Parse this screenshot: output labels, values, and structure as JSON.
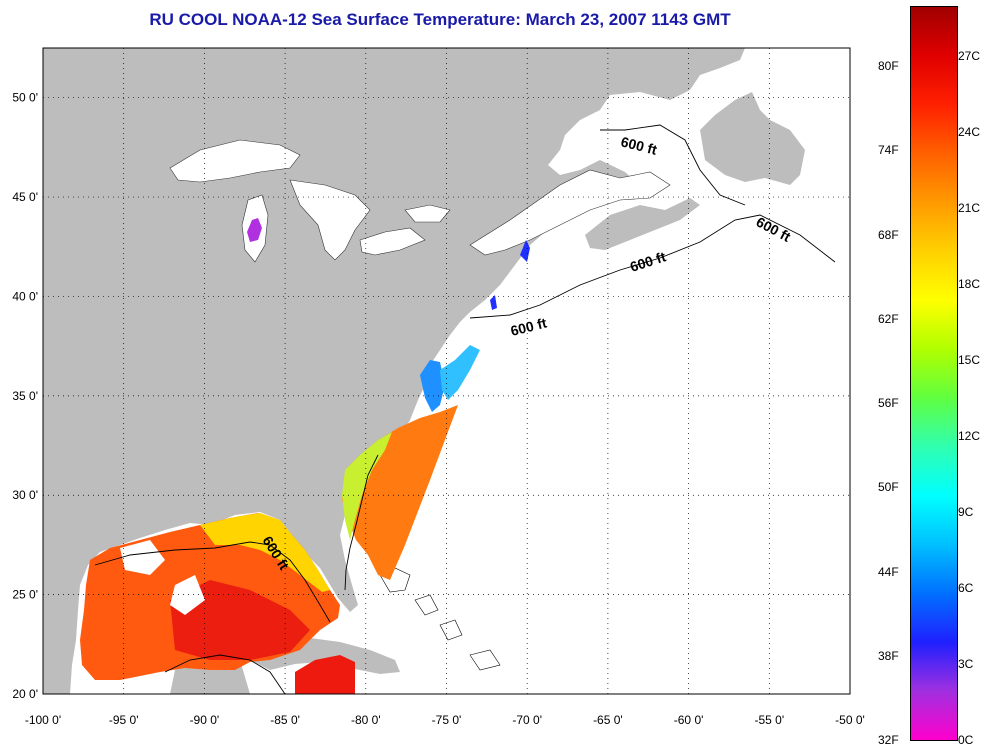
{
  "title": "RU COOL  NOAA-12  Sea Surface Temperature:  March 23, 2007 1143 GMT",
  "map": {
    "lon_labels": [
      "-100 0'",
      "-95 0'",
      "-90 0'",
      "-85 0'",
      "-80 0'",
      "-75 0'",
      "-70 0'",
      "-65 0'",
      "-60 0'",
      "-55 0'",
      "-50 0'"
    ],
    "lat_labels": [
      "50 0'",
      "45 0'",
      "40 0'",
      "35 0'",
      "30 0'",
      "25 0'",
      "20 0'"
    ],
    "contour_labels": [
      "600 ft",
      "600 ft",
      "600 ft",
      "600 ft",
      "600 ft"
    ],
    "land_color": "#bdbdbd",
    "no_data_color": "#ffffff",
    "lon_range": [
      -100,
      -50
    ],
    "lat_range": [
      20,
      52.5
    ]
  },
  "colorbar": {
    "fahrenheit_labels": [
      "80F",
      "74F",
      "68F",
      "62F",
      "56F",
      "50F",
      "44F",
      "38F",
      "32F"
    ],
    "celsius_labels": [
      "27C",
      "24C",
      "21C",
      "18C",
      "15C",
      "12C",
      "9C",
      "6C",
      "3C",
      "0C"
    ],
    "colors": [
      "#ff00cc",
      "#a030e0",
      "#2020ff",
      "#0070ff",
      "#00c0ff",
      "#00ffff",
      "#30ffb0",
      "#60ff40",
      "#b0ff00",
      "#ffff00",
      "#ffd000",
      "#ff9a00",
      "#ff6000",
      "#ff2000",
      "#e00000",
      "#a00000"
    ]
  }
}
